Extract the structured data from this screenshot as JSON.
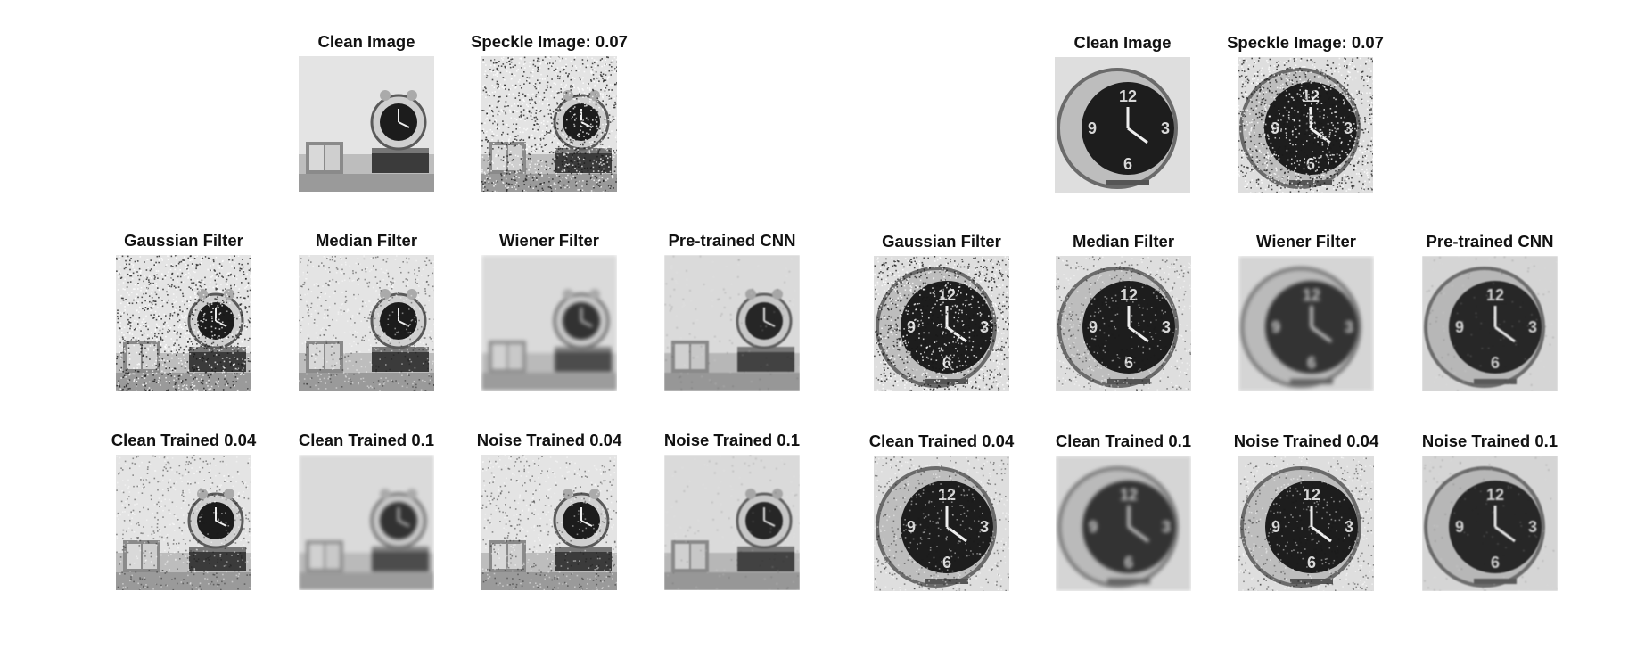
{
  "panels": {
    "left": {
      "row1": [
        "Clean Image",
        "Speckle Image: 0.07"
      ],
      "row2": [
        "Gaussian Filter",
        "Median Filter",
        "Wiener Filter",
        "Pre-trained CNN"
      ],
      "row3": [
        "Clean Trained 0.04",
        "Clean Trained 0.1",
        "Noise Trained 0.04",
        "Noise Trained 0.1"
      ]
    },
    "right": {
      "row1": [
        "Clean Image",
        "Speckle Image: 0.07"
      ],
      "row2": [
        "Gaussian Filter",
        "Median Filter",
        "Wiener Filter",
        "Pre-trained CNN"
      ],
      "row3": [
        "Clean Trained 0.04",
        "Clean Trained 0.1",
        "Noise Trained 0.04",
        "Noise Trained 0.1"
      ]
    }
  }
}
